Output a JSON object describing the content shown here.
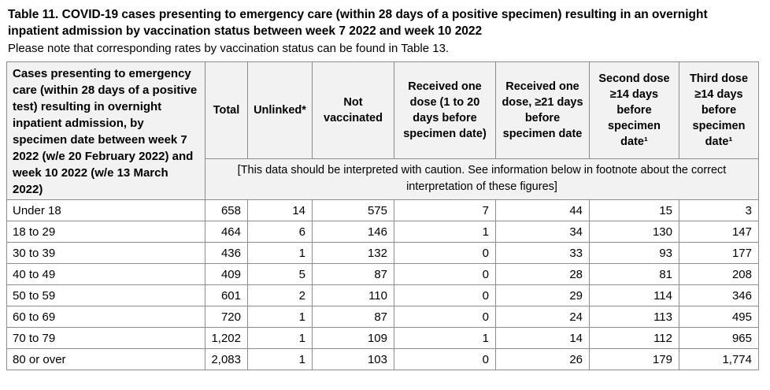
{
  "page": {
    "title": "Table 11. COVID-19 cases presenting to emergency care (within 28 days of a positive specimen) resulting in an overnight inpatient admission by vaccination status between week 7 2022 and week 10 2022",
    "subtitle": "Please note that corresponding rates by vaccination status can be found in Table 13."
  },
  "table": {
    "row_header_title": "Cases presenting to emergency care (within 28 days of a positive test) resulting in overnight inpatient admission, by specimen date between week 7 2022 (w/e 20 February 2022) and week 10 2022 (w/e 13 March 2022)",
    "columns": [
      "Total",
      "Unlinked*",
      "Not vaccinated",
      "Received one dose (1 to 20 days before specimen date)",
      "Received one dose, ≥21 days before specimen date",
      "Second dose ≥14 days before specimen date¹",
      "Third dose ≥14 days before specimen date¹"
    ],
    "caution_note": "[This data should be interpreted with caution. See information below in footnote about the correct interpretation of these figures]",
    "rows": [
      {
        "label": "Under 18",
        "values": [
          "658",
          "14",
          "575",
          "7",
          "44",
          "15",
          "3"
        ]
      },
      {
        "label": "18 to 29",
        "values": [
          "464",
          "6",
          "146",
          "1",
          "34",
          "130",
          "147"
        ]
      },
      {
        "label": "30 to 39",
        "values": [
          "436",
          "1",
          "132",
          "0",
          "33",
          "93",
          "177"
        ]
      },
      {
        "label": "40 to 49",
        "values": [
          "409",
          "5",
          "87",
          "0",
          "28",
          "81",
          "208"
        ]
      },
      {
        "label": "50 to 59",
        "values": [
          "601",
          "2",
          "110",
          "0",
          "29",
          "114",
          "346"
        ]
      },
      {
        "label": "60 to 69",
        "values": [
          "720",
          "1",
          "87",
          "0",
          "24",
          "113",
          "495"
        ]
      },
      {
        "label": "70 to 79",
        "values": [
          "1,202",
          "1",
          "109",
          "1",
          "14",
          "112",
          "965"
        ]
      },
      {
        "label": "80 or over",
        "values": [
          "2,083",
          "1",
          "103",
          "0",
          "26",
          "179",
          "1,774"
        ]
      }
    ],
    "colors": {
      "header_background": "#f2f2f2",
      "border": "#8c8c8c",
      "text": "#000000",
      "body_background": "#ffffff"
    }
  }
}
